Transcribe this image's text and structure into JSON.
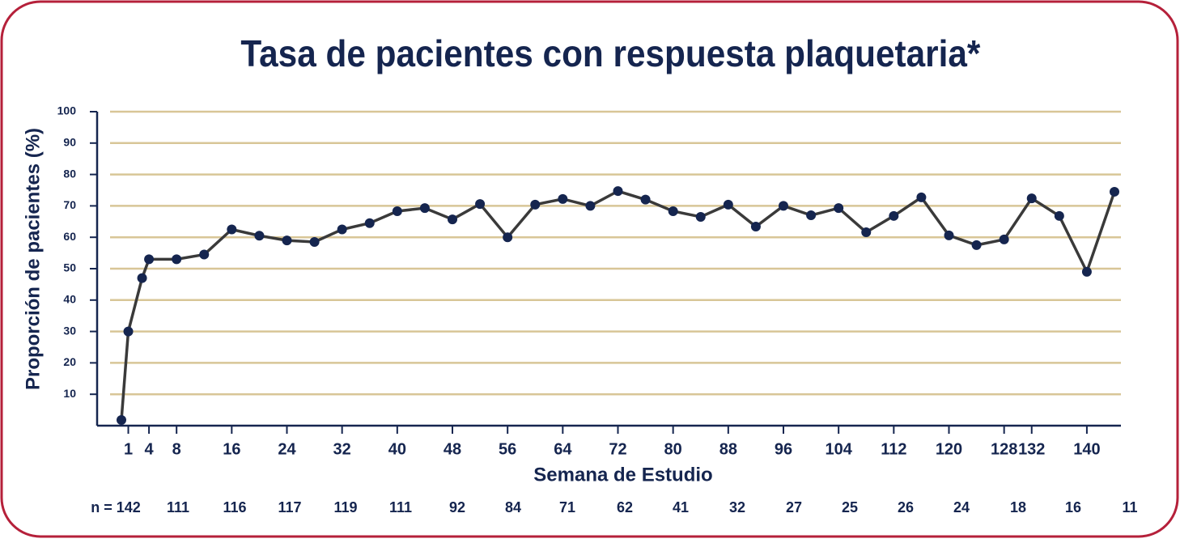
{
  "chart_data": {
    "type": "line",
    "title": "Tasa de pacientes con respuesta plaquetaria*",
    "x_label": "Semana de Estudio",
    "y_label": "Proporción de pacientes (%)",
    "x": [
      0,
      1,
      3,
      4,
      8,
      12,
      16,
      20,
      24,
      28,
      32,
      36,
      40,
      44,
      48,
      52,
      56,
      60,
      64,
      68,
      72,
      76,
      80,
      84,
      88,
      92,
      96,
      100,
      104,
      108,
      112,
      116,
      120,
      124,
      128,
      132,
      136,
      140,
      144
    ],
    "series": [
      {
        "name": "Pacientes con respuesta plaquetaria",
        "color": "#3a3a3a",
        "marker_color": "#15254f",
        "values": [
          1.8,
          30,
          47,
          53,
          53,
          54.5,
          62.5,
          60.5,
          59,
          58.5,
          62.5,
          64.5,
          68.3,
          69.3,
          65.7,
          70.6,
          60,
          70.4,
          72.2,
          70,
          74.7,
          72,
          68.3,
          66.5,
          70.4,
          63.4,
          70,
          67,
          69.3,
          61.6,
          66.8,
          72.7,
          60.6,
          57.5,
          59.3,
          72.4,
          66.8,
          49,
          74.5
        ]
      }
    ],
    "xlim": [
      0,
      144
    ],
    "xticks": [
      1,
      4,
      8,
      16,
      24,
      32,
      40,
      48,
      56,
      64,
      72,
      80,
      88,
      96,
      104,
      112,
      120,
      128,
      132,
      140
    ],
    "ylim": [
      0,
      100
    ],
    "yticks": [
      10,
      20,
      30,
      40,
      50,
      60,
      70,
      80,
      90,
      100
    ],
    "grid": true,
    "n_labels": [
      "n = 142",
      "111",
      "116",
      "117",
      "119",
      "111",
      "92",
      "84",
      "71",
      "62",
      "41",
      "32",
      "27",
      "25",
      "26",
      "24",
      "18",
      "16",
      "11"
    ]
  }
}
